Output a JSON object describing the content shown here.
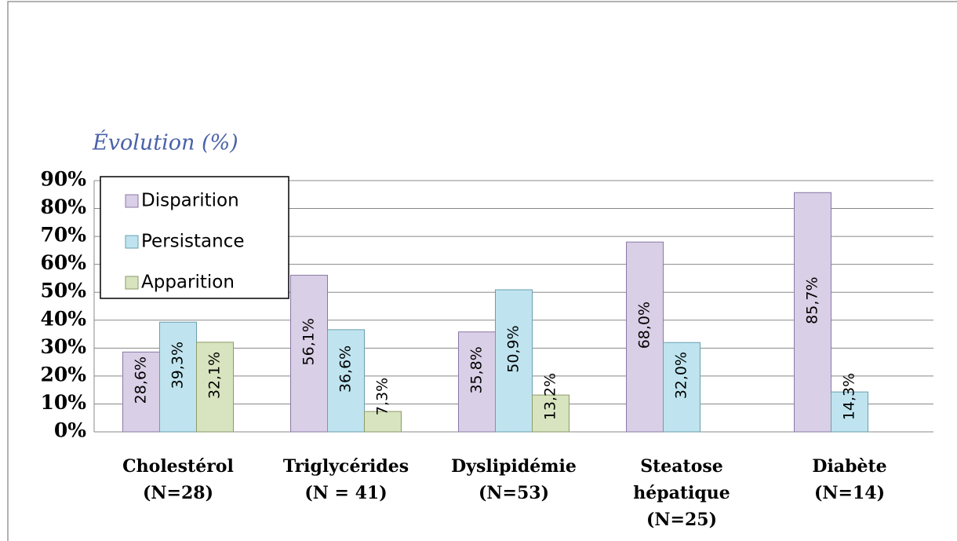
{
  "chart_data": {
    "type": "bar",
    "y_axis_title": "Évolution (%)",
    "categories": [
      [
        "Cholestérol",
        "(N=28)"
      ],
      [
        "Triglycérides",
        "(N = 41)"
      ],
      [
        "Dyslipidémie",
        "(N=53)"
      ],
      [
        "Steatose",
        "hépatique",
        "(N=25)"
      ],
      [
        "Diabète",
        "(N=14)"
      ]
    ],
    "series": [
      {
        "name": "Disparition",
        "color": "#d9cfe6",
        "border": "#8a78a6",
        "values": [
          28.6,
          56.1,
          35.8,
          68.0,
          85.7
        ],
        "value_labels": [
          "28,6%",
          "56,1%",
          "35,8%",
          "68,0%",
          "85,7%"
        ]
      },
      {
        "name": "Persistance",
        "color": "#bfe4ef",
        "border": "#6a9fb0",
        "values": [
          39.3,
          36.6,
          50.9,
          32.0,
          14.3
        ],
        "value_labels": [
          "39,3%",
          "36,6%",
          "50,9%",
          "32,0%",
          "14,3%"
        ]
      },
      {
        "name": "Apparition",
        "color": "#d8e4bf",
        "border": "#8a9a6a",
        "values": [
          32.1,
          7.3,
          13.2,
          null,
          null
        ],
        "value_labels": [
          "32,1%",
          "7,3%",
          "13,2%",
          null,
          null
        ]
      }
    ],
    "ylim": [
      0,
      90
    ],
    "yticks": [
      {
        "value": 0,
        "label": "0%"
      },
      {
        "value": 10,
        "label": "10%"
      },
      {
        "value": 20,
        "label": "20%"
      },
      {
        "value": 30,
        "label": "30%"
      },
      {
        "value": 40,
        "label": "40%"
      },
      {
        "value": 50,
        "label": "50%"
      },
      {
        "value": 60,
        "label": "60%"
      },
      {
        "value": 70,
        "label": "70%"
      },
      {
        "value": 80,
        "label": "80%"
      },
      {
        "value": 90,
        "label": "90%"
      }
    ],
    "grid": true,
    "legend": "top-left"
  }
}
